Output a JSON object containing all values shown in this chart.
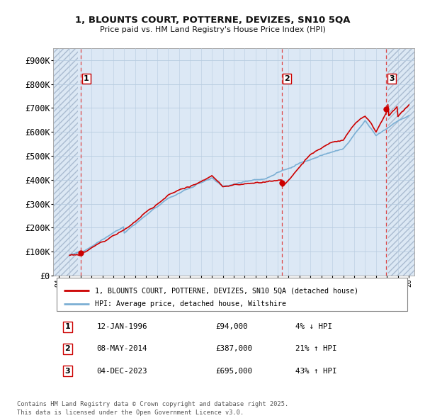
{
  "title_line1": "1, BLOUNTS COURT, POTTERNE, DEVIZES, SN10 5QA",
  "title_line2": "Price paid vs. HM Land Registry's House Price Index (HPI)",
  "property_label": "1, BLOUNTS COURT, POTTERNE, DEVIZES, SN10 5QA (detached house)",
  "hpi_label": "HPI: Average price, detached house, Wiltshire",
  "property_color": "#cc0000",
  "hpi_color": "#7bafd4",
  "background_color": "#dce8f5",
  "hatch_bg": "#e8eef8",
  "grid_color": "#b8cce0",
  "sale_points": [
    {
      "date_num": 1996.04,
      "price": 94000,
      "label": "1",
      "date_str": "12-JAN-1996",
      "pct": "4%",
      "dir": "↓"
    },
    {
      "date_num": 2014.37,
      "price": 387000,
      "label": "2",
      "date_str": "08-MAY-2014",
      "pct": "21%",
      "dir": "↑"
    },
    {
      "date_num": 2023.92,
      "price": 695000,
      "label": "3",
      "date_str": "04-DEC-2023",
      "pct": "43%",
      "dir": "↑"
    }
  ],
  "vline_color": "#dd4444",
  "ylim": [
    0,
    950000
  ],
  "xlim_start": 1993.5,
  "xlim_end": 2026.5,
  "hatch_left_end": 1995.75,
  "hatch_right_start": 2024.1,
  "ytick_step": 100000,
  "footer": "Contains HM Land Registry data © Crown copyright and database right 2025.\nThis data is licensed under the Open Government Licence v3.0."
}
